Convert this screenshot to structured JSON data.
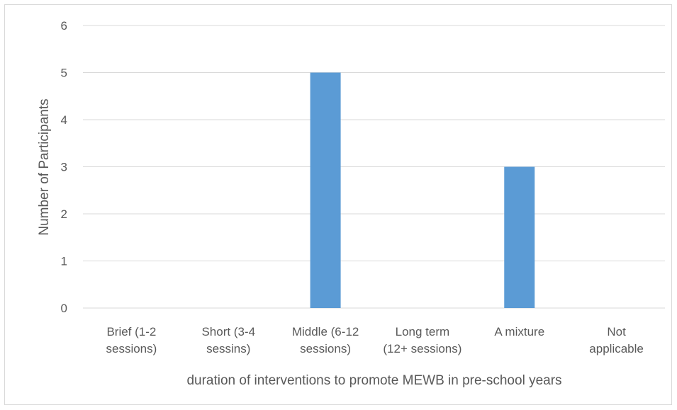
{
  "chart_data": {
    "type": "bar",
    "categories": [
      [
        "Brief (1-2",
        "sessions)"
      ],
      [
        "Short (3-4",
        "sessins)"
      ],
      [
        "Middle (6-12",
        "sessions)"
      ],
      [
        "Long term",
        "(12+ sessions)"
      ],
      [
        "A mixture"
      ],
      [
        "Not",
        "applicable"
      ]
    ],
    "values": [
      0,
      0,
      5,
      0,
      3,
      0
    ],
    "xlabel": "duration of interventions to promote MEWB in pre-school years",
    "ylabel": "Number of Participants",
    "ylim": [
      0,
      6
    ],
    "yticks": [
      0,
      1,
      2,
      3,
      4,
      5,
      6
    ],
    "grid": true,
    "legend": "none",
    "bar_color": "#5b9bd5",
    "grid_color": "#d9d9d9"
  }
}
